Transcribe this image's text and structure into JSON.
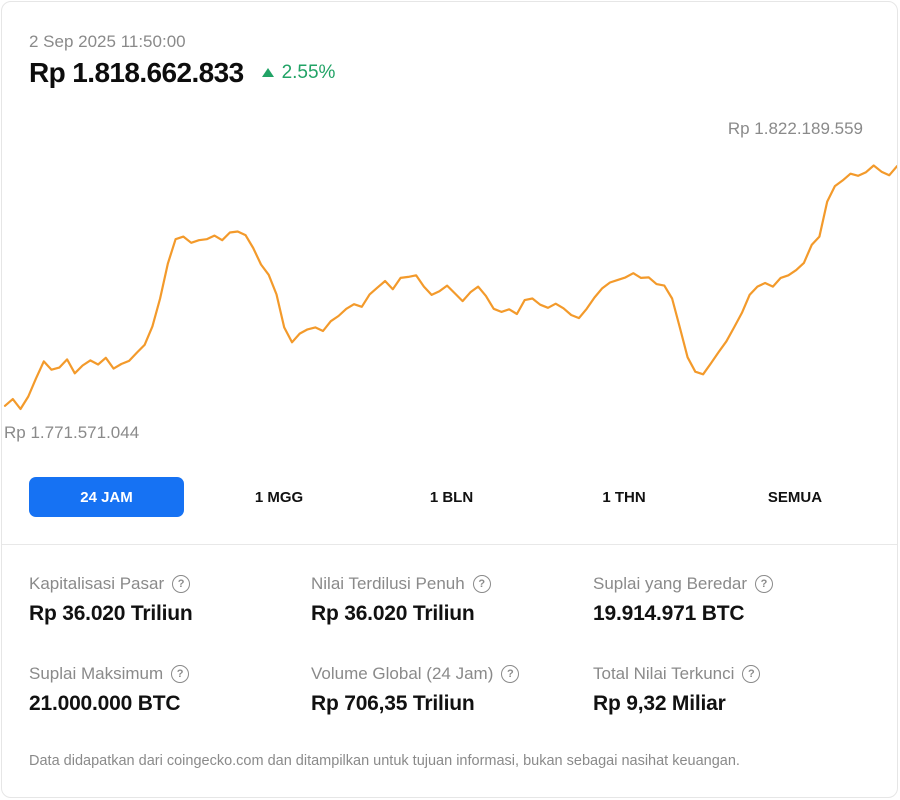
{
  "header": {
    "timestamp": "2 Sep 2025 11:50:00",
    "price": "Rp 1.818.662.833",
    "change": "2.55%",
    "change_color": "#21a366",
    "change_icon": "triangle-up-icon"
  },
  "chart": {
    "high_label": "Rp 1.822.189.559",
    "low_label": "Rp 1.771.571.044",
    "line_color": "#f39a2b"
  },
  "chart_data": {
    "type": "line",
    "ylim": [
      1771571044,
      1822189559
    ],
    "values": [
      1772200000,
      1773500000,
      1771571044,
      1774000000,
      1777500000,
      1780800000,
      1779200000,
      1779600000,
      1781200000,
      1778500000,
      1780000000,
      1781000000,
      1780200000,
      1781500000,
      1779400000,
      1780300000,
      1780900000,
      1782500000,
      1784000000,
      1787600000,
      1793000000,
      1799800000,
      1804500000,
      1805000000,
      1803800000,
      1804300000,
      1804500000,
      1805200000,
      1804300000,
      1805800000,
      1806000000,
      1805300000,
      1802800000,
      1799600000,
      1797600000,
      1793800000,
      1787400000,
      1784500000,
      1786200000,
      1787000000,
      1787400000,
      1786700000,
      1788600000,
      1789600000,
      1791000000,
      1791900000,
      1791400000,
      1793800000,
      1795100000,
      1796400000,
      1794800000,
      1797000000,
      1797200000,
      1797500000,
      1795300000,
      1793700000,
      1794400000,
      1795500000,
      1794000000,
      1792500000,
      1794200000,
      1795300000,
      1793500000,
      1791000000,
      1790400000,
      1790900000,
      1790000000,
      1792700000,
      1793000000,
      1791800000,
      1791200000,
      1792000000,
      1791100000,
      1789800000,
      1789200000,
      1791000000,
      1793200000,
      1795000000,
      1796100000,
      1796600000,
      1797100000,
      1797900000,
      1797000000,
      1797100000,
      1795800000,
      1795500000,
      1793000000,
      1787400000,
      1781600000,
      1778800000,
      1778300000,
      1780400000,
      1782600000,
      1784700000,
      1787400000,
      1790200000,
      1793700000,
      1795300000,
      1796000000,
      1795300000,
      1797000000,
      1797500000,
      1798500000,
      1799900000,
      1803400000,
      1805000000,
      1811800000,
      1814800000,
      1815900000,
      1817200000,
      1816800000,
      1817500000,
      1818800000,
      1817600000,
      1816900000,
      1818662833
    ],
    "grid": false
  },
  "ranges": [
    {
      "label": "24 JAM",
      "active": true
    },
    {
      "label": "1 MGG",
      "active": false
    },
    {
      "label": "1 BLN",
      "active": false
    },
    {
      "label": "1 THN",
      "active": false
    },
    {
      "label": "SEMUA",
      "active": false
    }
  ],
  "accent_color": "#1672f3",
  "stats": [
    {
      "label": "Kapitalisasi Pasar",
      "value": "Rp 36.020 Triliun"
    },
    {
      "label": "Nilai Terdilusi Penuh",
      "value": "Rp 36.020 Triliun"
    },
    {
      "label": "Suplai yang Beredar",
      "value": "19.914.971 BTC"
    },
    {
      "label": "Suplai Maksimum",
      "value": "21.000.000 BTC"
    },
    {
      "label": "Volume Global (24 Jam)",
      "value": "Rp 706,35 Triliun"
    },
    {
      "label": "Total Nilai Terkunci",
      "value": "Rp 9,32 Miliar"
    }
  ],
  "info_icon_glyph": "?",
  "footnote": "Data didapatkan dari coingecko.com dan ditampilkan untuk tujuan informasi, bukan sebagai nasihat keuangan."
}
